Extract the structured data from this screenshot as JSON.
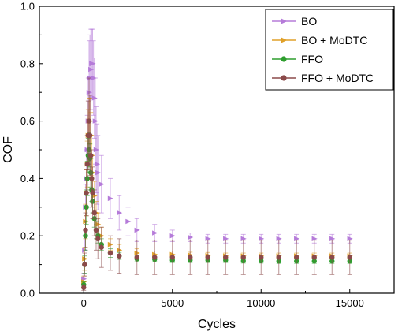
{
  "chart_data": {
    "type": "scatter",
    "title": "",
    "xlabel": "Cycles",
    "ylabel": "COF",
    "xlim": [
      -2500,
      17500
    ],
    "ylim": [
      0.0,
      1.0
    ],
    "xticks": [
      0,
      5000,
      10000,
      15000
    ],
    "yticks": [
      0.0,
      0.2,
      0.4,
      0.6,
      0.8,
      1.0
    ],
    "xtick_labels": [
      "0",
      "5000",
      "10000",
      "15000"
    ],
    "ytick_labels": [
      "0.0",
      "0.2",
      "0.4",
      "0.6",
      "0.8",
      "1.0"
    ],
    "grid": false,
    "legend_position": "top-right",
    "series": [
      {
        "name": "BO",
        "color": "#b57bd9",
        "marker": "triangle-right",
        "points": [
          [
            0,
            0.05,
            0.02
          ],
          [
            50,
            0.15,
            0.05
          ],
          [
            100,
            0.3,
            0.08
          ],
          [
            150,
            0.4,
            0.1
          ],
          [
            200,
            0.5,
            0.12
          ],
          [
            250,
            0.6,
            0.15
          ],
          [
            300,
            0.7,
            0.18
          ],
          [
            350,
            0.75,
            0.15
          ],
          [
            400,
            0.78,
            0.14
          ],
          [
            450,
            0.8,
            0.12
          ],
          [
            500,
            0.8,
            0.12
          ],
          [
            550,
            0.75,
            0.13
          ],
          [
            600,
            0.68,
            0.14
          ],
          [
            650,
            0.6,
            0.15
          ],
          [
            700,
            0.5,
            0.15
          ],
          [
            750,
            0.45,
            0.14
          ],
          [
            800,
            0.42,
            0.13
          ],
          [
            1000,
            0.38,
            0.1
          ],
          [
            1500,
            0.33,
            0.07
          ],
          [
            2000,
            0.28,
            0.06
          ],
          [
            2500,
            0.25,
            0.05
          ],
          [
            3000,
            0.22,
            0.04
          ],
          [
            4000,
            0.21,
            0.03
          ],
          [
            5000,
            0.2,
            0.02
          ],
          [
            6000,
            0.195,
            0.015
          ],
          [
            7000,
            0.19,
            0.015
          ],
          [
            8000,
            0.19,
            0.015
          ],
          [
            9000,
            0.19,
            0.015
          ],
          [
            10000,
            0.19,
            0.015
          ],
          [
            11000,
            0.19,
            0.015
          ],
          [
            12000,
            0.19,
            0.015
          ],
          [
            13000,
            0.19,
            0.015
          ],
          [
            14000,
            0.19,
            0.015
          ],
          [
            15000,
            0.19,
            0.015
          ]
        ]
      },
      {
        "name": "BO + MoDTC",
        "color": "#e0a028",
        "marker": "triangle-right",
        "points": [
          [
            0,
            0.04,
            0.02
          ],
          [
            50,
            0.12,
            0.04
          ],
          [
            100,
            0.25,
            0.06
          ],
          [
            150,
            0.35,
            0.08
          ],
          [
            200,
            0.45,
            0.08
          ],
          [
            250,
            0.55,
            0.09
          ],
          [
            300,
            0.6,
            0.08
          ],
          [
            350,
            0.6,
            0.08
          ],
          [
            400,
            0.55,
            0.08
          ],
          [
            450,
            0.48,
            0.07
          ],
          [
            500,
            0.42,
            0.06
          ],
          [
            600,
            0.34,
            0.05
          ],
          [
            700,
            0.28,
            0.04
          ],
          [
            800,
            0.24,
            0.04
          ],
          [
            1000,
            0.2,
            0.03
          ],
          [
            1500,
            0.17,
            0.02
          ],
          [
            2000,
            0.15,
            0.02
          ],
          [
            3000,
            0.14,
            0.015
          ],
          [
            4000,
            0.135,
            0.012
          ],
          [
            5000,
            0.135,
            0.012
          ],
          [
            6000,
            0.133,
            0.01
          ],
          [
            7000,
            0.132,
            0.01
          ],
          [
            8000,
            0.13,
            0.01
          ],
          [
            9000,
            0.13,
            0.01
          ],
          [
            10000,
            0.13,
            0.01
          ],
          [
            11000,
            0.13,
            0.01
          ],
          [
            12000,
            0.13,
            0.01
          ],
          [
            13000,
            0.13,
            0.01
          ],
          [
            14000,
            0.13,
            0.01
          ],
          [
            15000,
            0.13,
            0.01
          ]
        ]
      },
      {
        "name": "FFO",
        "color": "#2e9e2e",
        "marker": "circle",
        "points": [
          [
            0,
            0.03,
            0.01
          ],
          [
            50,
            0.1,
            0.03
          ],
          [
            100,
            0.2,
            0.05
          ],
          [
            150,
            0.3,
            0.06
          ],
          [
            200,
            0.4,
            0.06
          ],
          [
            250,
            0.48,
            0.06
          ],
          [
            300,
            0.5,
            0.06
          ],
          [
            350,
            0.47,
            0.05
          ],
          [
            400,
            0.42,
            0.05
          ],
          [
            450,
            0.36,
            0.04
          ],
          [
            500,
            0.32,
            0.04
          ],
          [
            600,
            0.26,
            0.03
          ],
          [
            700,
            0.22,
            0.03
          ],
          [
            800,
            0.2,
            0.025
          ],
          [
            1000,
            0.17,
            0.02
          ],
          [
            1500,
            0.14,
            0.015
          ],
          [
            2000,
            0.13,
            0.012
          ],
          [
            3000,
            0.12,
            0.01
          ],
          [
            4000,
            0.118,
            0.008
          ],
          [
            5000,
            0.115,
            0.008
          ],
          [
            6000,
            0.115,
            0.008
          ],
          [
            7000,
            0.115,
            0.008
          ],
          [
            8000,
            0.115,
            0.008
          ],
          [
            9000,
            0.113,
            0.008
          ],
          [
            10000,
            0.113,
            0.008
          ],
          [
            11000,
            0.112,
            0.008
          ],
          [
            12000,
            0.112,
            0.008
          ],
          [
            13000,
            0.112,
            0.008
          ],
          [
            14000,
            0.112,
            0.008
          ],
          [
            15000,
            0.112,
            0.008
          ]
        ]
      },
      {
        "name": "FFO + MoDTC",
        "color": "#8b4a4a",
        "marker": "circle",
        "points": [
          [
            0,
            0.02,
            0.01
          ],
          [
            50,
            0.1,
            0.04
          ],
          [
            100,
            0.22,
            0.06
          ],
          [
            150,
            0.35,
            0.08
          ],
          [
            200,
            0.45,
            0.1
          ],
          [
            250,
            0.55,
            0.12
          ],
          [
            300,
            0.6,
            0.15
          ],
          [
            350,
            0.55,
            0.14
          ],
          [
            400,
            0.48,
            0.12
          ],
          [
            450,
            0.4,
            0.1
          ],
          [
            500,
            0.35,
            0.09
          ],
          [
            600,
            0.28,
            0.08
          ],
          [
            700,
            0.22,
            0.07
          ],
          [
            800,
            0.19,
            0.07
          ],
          [
            1000,
            0.16,
            0.07
          ],
          [
            1500,
            0.14,
            0.06
          ],
          [
            2000,
            0.13,
            0.06
          ],
          [
            3000,
            0.125,
            0.06
          ],
          [
            4000,
            0.125,
            0.06
          ],
          [
            5000,
            0.125,
            0.06
          ],
          [
            6000,
            0.125,
            0.06
          ],
          [
            7000,
            0.125,
            0.06
          ],
          [
            8000,
            0.125,
            0.06
          ],
          [
            9000,
            0.125,
            0.06
          ],
          [
            10000,
            0.125,
            0.06
          ],
          [
            11000,
            0.125,
            0.06
          ],
          [
            12000,
            0.125,
            0.06
          ],
          [
            13000,
            0.125,
            0.06
          ],
          [
            14000,
            0.125,
            0.06
          ],
          [
            15000,
            0.125,
            0.06
          ]
        ]
      }
    ]
  }
}
